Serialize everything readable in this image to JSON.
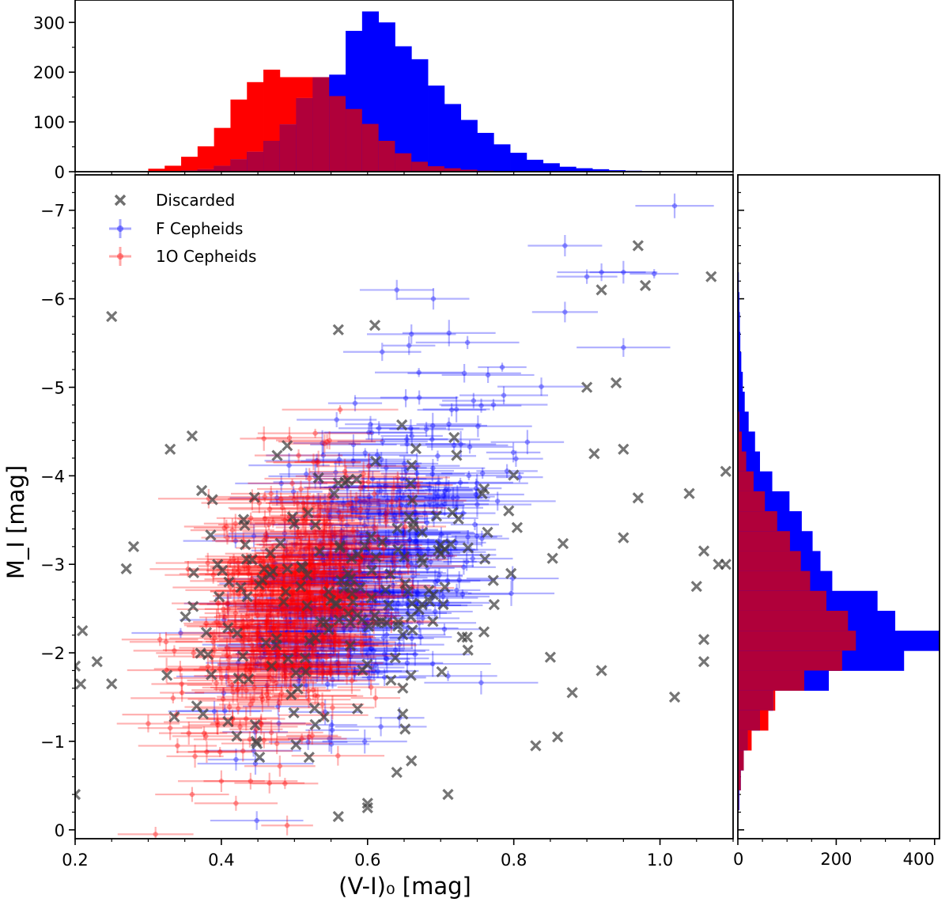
{
  "chart_data": {
    "type": "scatter",
    "title": "",
    "xlabel": "(V-I)₀ [mag]",
    "ylabel": "M_I [mag]",
    "xlim": [
      0.2,
      1.1
    ],
    "ylim": [
      0.1,
      -7.4
    ],
    "x_ticks": [
      0.2,
      0.4,
      0.6,
      0.8,
      1.0
    ],
    "x_tick_labels": [
      "0.2",
      "0.4",
      "0.6",
      "0.8",
      "1.0"
    ],
    "y_ticks": [
      -7,
      -6,
      -5,
      -4,
      -3,
      -2,
      -1,
      0
    ],
    "y_tick_labels": [
      "−7",
      "−6",
      "−5",
      "−4",
      "−3",
      "−2",
      "−1",
      "0"
    ],
    "legend": {
      "position": "top-left",
      "entries": [
        {
          "label": "Discarded",
          "color": "#404040",
          "marker": "x"
        },
        {
          "label": "F Cepheids",
          "color": "#0000ff",
          "marker": "errorbar"
        },
        {
          "label": "1O Cepheids",
          "color": "#ff0000",
          "marker": "errorbar"
        }
      ]
    },
    "colors": {
      "F": "#0000ff",
      "O1": "#ff0000",
      "overlap": "#b0003a",
      "discarded": "#404040"
    },
    "series": [
      {
        "name": "F Cepheids",
        "marker": "errorbar",
        "cloud": [
          {
            "cx": 0.6,
            "cy": -3.0,
            "sx": 0.085,
            "sy": 0.85,
            "rho": 0.55,
            "n": 520,
            "seed": 11
          }
        ],
        "points": [
          {
            "x": 1.02,
            "y": -7.05
          },
          {
            "x": 0.87,
            "y": -6.6
          },
          {
            "x": 0.92,
            "y": -6.3
          },
          {
            "x": 0.95,
            "y": -6.3
          },
          {
            "x": 0.9,
            "y": -6.25
          },
          {
            "x": 0.64,
            "y": -6.1
          },
          {
            "x": 0.69,
            "y": -6.0
          },
          {
            "x": 0.87,
            "y": -5.85
          },
          {
            "x": 0.66,
            "y": -5.6
          },
          {
            "x": 0.95,
            "y": -5.45
          },
          {
            "x": 0.62,
            "y": -5.4
          }
        ]
      },
      {
        "name": "1O Cepheids",
        "marker": "errorbar",
        "cloud": [
          {
            "cx": 0.49,
            "cy": -2.6,
            "sx": 0.065,
            "sy": 0.75,
            "rho": 0.45,
            "n": 560,
            "seed": 23
          }
        ],
        "points": [
          {
            "x": 0.34,
            "y": -0.95
          },
          {
            "x": 0.38,
            "y": -0.88
          },
          {
            "x": 0.36,
            "y": -0.4
          },
          {
            "x": 0.4,
            "y": -0.55
          },
          {
            "x": 0.42,
            "y": -0.3
          },
          {
            "x": 0.44,
            "y": -0.55
          },
          {
            "x": 0.48,
            "y": -0.72
          },
          {
            "x": 0.31,
            "y": 0.05
          },
          {
            "x": 0.49,
            "y": -0.05
          },
          {
            "x": 0.3,
            "y": -1.2
          },
          {
            "x": 0.33,
            "y": -1.15
          },
          {
            "x": 0.52,
            "y": -1.05
          }
        ]
      },
      {
        "name": "Discarded",
        "marker": "x",
        "cloud": [
          {
            "cx": 0.58,
            "cy": -2.7,
            "sx": 0.12,
            "sy": 0.8,
            "rho": 0.3,
            "n": 190,
            "seed": 37
          }
        ],
        "points": [
          {
            "x": 0.25,
            "y": -5.8
          },
          {
            "x": 0.97,
            "y": -6.6
          },
          {
            "x": 1.07,
            "y": -6.25
          },
          {
            "x": 0.92,
            "y": -6.1
          },
          {
            "x": 0.98,
            "y": -6.15
          },
          {
            "x": 0.56,
            "y": -5.65
          },
          {
            "x": 0.61,
            "y": -5.7
          },
          {
            "x": 0.9,
            "y": -5.0
          },
          {
            "x": 0.94,
            "y": -5.05
          },
          {
            "x": 0.36,
            "y": -4.45
          },
          {
            "x": 0.33,
            "y": -4.3
          },
          {
            "x": 1.09,
            "y": -4.05
          },
          {
            "x": 1.04,
            "y": -3.8
          },
          {
            "x": 0.97,
            "y": -3.75
          },
          {
            "x": 0.91,
            "y": -4.25
          },
          {
            "x": 0.95,
            "y": -4.3
          },
          {
            "x": 0.95,
            "y": -3.3
          },
          {
            "x": 1.06,
            "y": -3.15
          },
          {
            "x": 1.09,
            "y": -3.0
          },
          {
            "x": 1.08,
            "y": -3.0
          },
          {
            "x": 1.05,
            "y": -2.75
          },
          {
            "x": 1.06,
            "y": -2.15
          },
          {
            "x": 1.06,
            "y": -1.9
          },
          {
            "x": 1.02,
            "y": -1.5
          },
          {
            "x": 0.2,
            "y": -0.4
          },
          {
            "x": 0.21,
            "y": -2.25
          },
          {
            "x": 0.2,
            "y": -1.85
          },
          {
            "x": 0.23,
            "y": -1.9
          },
          {
            "x": 0.25,
            "y": -1.65
          },
          {
            "x": 0.28,
            "y": -3.2
          },
          {
            "x": 0.27,
            "y": -2.95
          },
          {
            "x": 0.56,
            "y": -0.15
          },
          {
            "x": 0.6,
            "y": -0.3
          },
          {
            "x": 0.6,
            "y": -0.25
          },
          {
            "x": 0.71,
            "y": -0.4
          },
          {
            "x": 0.64,
            "y": -0.65
          },
          {
            "x": 0.66,
            "y": -0.78
          },
          {
            "x": 0.83,
            "y": -0.95
          },
          {
            "x": 0.86,
            "y": -1.05
          },
          {
            "x": 0.85,
            "y": -1.95
          },
          {
            "x": 0.88,
            "y": -1.55
          },
          {
            "x": 0.92,
            "y": -1.8
          },
          {
            "x": 0.52,
            "y": -0.82
          }
        ]
      }
    ],
    "histograms": [
      {
        "name": "top-histogram",
        "axis": "x",
        "ylim": [
          0,
          345
        ],
        "y_ticks": [
          0,
          100,
          200,
          300
        ],
        "y_tick_labels": [
          "0",
          "100",
          "200",
          "300"
        ],
        "bin_edges": [
          0.3,
          0.3225,
          0.345,
          0.3675,
          0.39,
          0.4125,
          0.435,
          0.4575,
          0.48,
          0.5025,
          0.525,
          0.5475,
          0.57,
          0.5925,
          0.615,
          0.6375,
          0.66,
          0.6825,
          0.705,
          0.7275,
          0.75,
          0.7725,
          0.795,
          0.8175,
          0.84,
          0.8625,
          0.885,
          0.9075,
          0.93,
          0.9525,
          0.975,
          0.9975,
          1.02
        ],
        "F_counts": [
          0,
          0,
          2,
          5,
          12,
          25,
          40,
          62,
          95,
          148,
          190,
          195,
          283,
          322,
          300,
          252,
          226,
          173,
          136,
          104,
          78,
          55,
          38,
          24,
          17,
          10,
          7,
          5,
          3,
          2,
          1,
          1
        ],
        "O1_counts": [
          6,
          12,
          30,
          51,
          88,
          145,
          180,
          205,
          190,
          190,
          190,
          152,
          126,
          96,
          62,
          37,
          20,
          11,
          7,
          4,
          2,
          1,
          0,
          0,
          0,
          0,
          0,
          0,
          0,
          0,
          0,
          0
        ]
      },
      {
        "name": "right-histogram",
        "axis": "y",
        "xlim": [
          0,
          410
        ],
        "x_ticks": [
          0,
          200,
          400
        ],
        "x_tick_labels": [
          "0",
          "200",
          "400"
        ],
        "bin_edges": [
          -6.3,
          -6.075,
          -5.85,
          -5.625,
          -5.4,
          -5.175,
          -4.95,
          -4.725,
          -4.5,
          -4.275,
          -4.05,
          -3.825,
          -3.6,
          -3.375,
          -3.15,
          -2.925,
          -2.7,
          -2.475,
          -2.25,
          -2.025,
          -1.8,
          -1.575,
          -1.35,
          -1.125,
          -0.9,
          -0.675,
          -0.45,
          -0.225,
          0.0
        ],
        "F_counts": [
          2,
          3,
          4,
          5,
          7,
          10,
          14,
          22,
          35,
          45,
          70,
          105,
          130,
          152,
          168,
          192,
          284,
          320,
          410,
          338,
          185,
          72,
          45,
          20,
          12,
          6,
          3,
          1
        ],
        "O1_counts": [
          0,
          0,
          0,
          0,
          0,
          0,
          1,
          3,
          8,
          17,
          32,
          55,
          80,
          106,
          128,
          147,
          180,
          224,
          240,
          212,
          135,
          76,
          62,
          28,
          12,
          6,
          2,
          1
        ]
      }
    ]
  }
}
